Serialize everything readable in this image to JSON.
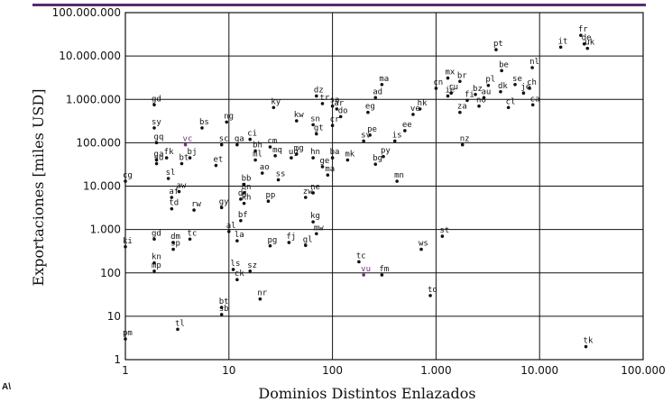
{
  "chart_data": {
    "type": "scatter",
    "xscale": "log",
    "yscale": "log",
    "xlabel": "Dominios Distintos Enlazados",
    "ylabel": "Exportaciones [miles USD]",
    "xlim": [
      1,
      100000
    ],
    "ylim": [
      1,
      100000000
    ],
    "grid": true,
    "xticks": [
      1,
      10,
      100,
      1000,
      10000,
      100000
    ],
    "xtick_labels": [
      "1",
      "10",
      "100",
      "1.000",
      "10.000",
      "100.000"
    ],
    "yticks": [
      1,
      10,
      100,
      1000,
      10000,
      100000,
      1000000,
      10000000,
      100000000
    ],
    "ytick_labels": [
      "1",
      "10",
      "100",
      "1.000",
      "10.000",
      "100.000",
      "1.000.000",
      "10.000.000",
      "100.000.000"
    ],
    "highlight_color": "#7a2a8a",
    "point_color": "#111111",
    "points": [
      {
        "label": "fr",
        "x": 25000,
        "y": 30000000
      },
      {
        "label": "it",
        "x": 16000,
        "y": 16000000
      },
      {
        "label": "de",
        "x": 27000,
        "y": 19000000
      },
      {
        "label": "uk",
        "x": 29000,
        "y": 15000000
      },
      {
        "label": "pt",
        "x": 3800,
        "y": 14000000
      },
      {
        "label": "be",
        "x": 4300,
        "y": 4600000
      },
      {
        "label": "nl",
        "x": 8500,
        "y": 5400000
      },
      {
        "label": "ch",
        "x": 8000,
        "y": 1800000
      },
      {
        "label": "se",
        "x": 5800,
        "y": 2200000
      },
      {
        "label": "ca",
        "x": 8600,
        "y": 750000
      },
      {
        "label": "je",
        "x": 7000,
        "y": 1400000
      },
      {
        "label": "cl",
        "x": 5000,
        "y": 650000
      },
      {
        "label": "dk",
        "x": 4200,
        "y": 1500000
      },
      {
        "label": "pl",
        "x": 3200,
        "y": 2100000
      },
      {
        "label": "mx",
        "x": 1300,
        "y": 3100000
      },
      {
        "label": "br",
        "x": 1700,
        "y": 2600000
      },
      {
        "label": "cn",
        "x": 1000,
        "y": 1800000
      },
      {
        "label": "ru",
        "x": 1400,
        "y": 1400000
      },
      {
        "label": "bz",
        "x": 2400,
        "y": 1300000
      },
      {
        "label": "au",
        "x": 2900,
        "y": 1100000
      },
      {
        "label": "ie",
        "x": 1300,
        "y": 1200000
      },
      {
        "label": "fi",
        "x": 2000,
        "y": 950000
      },
      {
        "label": "no",
        "x": 2600,
        "y": 700000
      },
      {
        "label": "za",
        "x": 1700,
        "y": 500000
      },
      {
        "label": "hk",
        "x": 700,
        "y": 600000
      },
      {
        "label": "nz",
        "x": 1800,
        "y": 90000
      },
      {
        "label": "ma",
        "x": 300,
        "y": 2200000
      },
      {
        "label": "ad",
        "x": 260,
        "y": 1100000
      },
      {
        "label": "eg",
        "x": 220,
        "y": 500000
      },
      {
        "label": "ve",
        "x": 600,
        "y": 450000
      },
      {
        "label": "dz",
        "x": 70,
        "y": 1200000
      },
      {
        "label": "ar",
        "x": 110,
        "y": 600000
      },
      {
        "label": "tr",
        "x": 80,
        "y": 800000
      },
      {
        "label": "sa",
        "x": 100,
        "y": 700000
      },
      {
        "label": "do",
        "x": 120,
        "y": 400000
      },
      {
        "label": "kw",
        "x": 45,
        "y": 320000
      },
      {
        "label": "sn",
        "x": 65,
        "y": 260000
      },
      {
        "label": "gt",
        "x": 70,
        "y": 160000
      },
      {
        "label": "ky",
        "x": 27,
        "y": 650000
      },
      {
        "label": "is",
        "x": 400,
        "y": 110000
      },
      {
        "label": "ee",
        "x": 500,
        "y": 190000
      },
      {
        "label": "mn",
        "x": 420,
        "y": 13000
      },
      {
        "label": "sy",
        "x": 1.9,
        "y": 220000
      },
      {
        "label": "gq",
        "x": 2.0,
        "y": 100000
      },
      {
        "label": "vc",
        "x": 3.8,
        "y": 90000,
        "highlight": true
      },
      {
        "label": "bs",
        "x": 5.5,
        "y": 220000
      },
      {
        "label": "ng",
        "x": 9.5,
        "y": 300000
      },
      {
        "label": "ci",
        "x": 16,
        "y": 120000
      },
      {
        "label": "sc",
        "x": 8.5,
        "y": 90000
      },
      {
        "label": "qa",
        "x": 12,
        "y": 90000
      },
      {
        "label": "cm",
        "x": 25,
        "y": 80000
      },
      {
        "label": "bh",
        "x": 18,
        "y": 65000
      },
      {
        "label": "ug",
        "x": 40,
        "y": 45000
      },
      {
        "label": "fk",
        "x": 2.5,
        "y": 45000
      },
      {
        "label": "bj",
        "x": 4.2,
        "y": 45000
      },
      {
        "label": "et",
        "x": 7.5,
        "y": 30000
      },
      {
        "label": "ga",
        "x": 2.0,
        "y": 40000
      },
      {
        "label": "sd",
        "x": 2.0,
        "y": 33000
      },
      {
        "label": "bt",
        "x": 3.5,
        "y": 33000
      },
      {
        "label": "sl",
        "x": 2.6,
        "y": 15000
      },
      {
        "label": "cg",
        "x": 1.0,
        "y": 13000
      },
      {
        "label": "af",
        "x": 2.8,
        "y": 5500
      },
      {
        "label": "aw",
        "x": 3.3,
        "y": 7500
      },
      {
        "label": "td",
        "x": 2.8,
        "y": 3000
      },
      {
        "label": "rw",
        "x": 4.6,
        "y": 2800
      },
      {
        "label": "gy",
        "x": 8.5,
        "y": 3200
      },
      {
        "label": "gd",
        "x": 1.9,
        "y": 750000
      },
      {
        "label": "gd",
        "x": 1.9,
        "y": 600
      },
      {
        "label": "dm",
        "x": 2.9,
        "y": 500
      },
      {
        "label": "sp",
        "x": 2.9,
        "y": 350
      },
      {
        "label": "tc",
        "x": 4.2,
        "y": 600
      },
      {
        "label": "ki",
        "x": 1.0,
        "y": 400
      },
      {
        "label": "kn",
        "x": 1.9,
        "y": 170
      },
      {
        "label": "mp",
        "x": 1.9,
        "y": 110
      },
      {
        "label": "ls",
        "x": 11,
        "y": 120
      },
      {
        "label": "sz",
        "x": 16,
        "y": 110
      },
      {
        "label": "ck",
        "x": 12,
        "y": 70
      },
      {
        "label": "ws",
        "x": 720,
        "y": 350
      },
      {
        "label": "st",
        "x": 1150,
        "y": 700
      },
      {
        "label": "tc",
        "x": 180,
        "y": 180
      },
      {
        "label": "vu",
        "x": 200,
        "y": 90,
        "highlight": true
      },
      {
        "label": "fm",
        "x": 300,
        "y": 90
      },
      {
        "label": "to",
        "x": 880,
        "y": 30
      },
      {
        "label": "bt",
        "x": 8.5,
        "y": 16
      },
      {
        "label": "sb",
        "x": 8.5,
        "y": 11
      },
      {
        "label": "nr",
        "x": 20,
        "y": 25
      },
      {
        "label": "tl",
        "x": 3.2,
        "y": 5
      },
      {
        "label": "pm",
        "x": 1.0,
        "y": 3
      },
      {
        "label": "tk",
        "x": 28000,
        "y": 2
      },
      {
        "label": "pg",
        "x": 25,
        "y": 420
      },
      {
        "label": "fj",
        "x": 38,
        "y": 500
      },
      {
        "label": "gl",
        "x": 55,
        "y": 430
      },
      {
        "label": "kg",
        "x": 65,
        "y": 1500
      },
      {
        "label": "mw",
        "x": 70,
        "y": 800
      },
      {
        "label": "la",
        "x": 12,
        "y": 550
      },
      {
        "label": "ne",
        "x": 65,
        "y": 7000
      },
      {
        "label": "zw",
        "x": 55,
        "y": 5500
      },
      {
        "label": "bb",
        "x": 14,
        "y": 11000
      },
      {
        "label": "bn",
        "x": 14,
        "y": 7000
      },
      {
        "label": "dj",
        "x": 13,
        "y": 5000
      },
      {
        "label": "kh",
        "x": 14,
        "y": 4000
      },
      {
        "label": "pp",
        "x": 24,
        "y": 4500
      },
      {
        "label": "bf",
        "x": 13,
        "y": 1600
      },
      {
        "label": "al",
        "x": 10,
        "y": 900
      },
      {
        "label": "ba",
        "x": 100,
        "y": 45000
      },
      {
        "label": "mk",
        "x": 140,
        "y": 40000
      },
      {
        "label": "bg",
        "x": 260,
        "y": 32000
      },
      {
        "label": "py",
        "x": 310,
        "y": 48000
      },
      {
        "label": "sv",
        "x": 200,
        "y": 110000
      },
      {
        "label": "pe",
        "x": 230,
        "y": 150000
      },
      {
        "label": "ma",
        "x": 90,
        "y": 18000
      },
      {
        "label": "mq",
        "x": 28,
        "y": 50000
      },
      {
        "label": "mg",
        "x": 45,
        "y": 55000
      },
      {
        "label": "ge",
        "x": 80,
        "y": 28000
      },
      {
        "label": "ml",
        "x": 18,
        "y": 40000
      },
      {
        "label": "ao",
        "x": 21,
        "y": 20000
      },
      {
        "label": "ss",
        "x": 30,
        "y": 14000
      },
      {
        "label": "hn",
        "x": 65,
        "y": 45000
      },
      {
        "label": "cr",
        "x": 100,
        "y": 250000
      }
    ]
  }
}
